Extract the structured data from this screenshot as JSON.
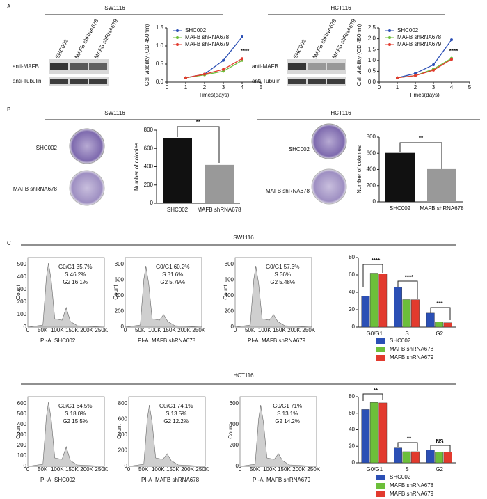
{
  "figure": {
    "panel_labels": [
      "A",
      "B",
      "C"
    ],
    "panel_a": [
      {
        "title": "SW1116",
        "lanes": [
          "SHC002",
          "MAFB shRNA678",
          "MAFB shRNA679"
        ],
        "rows": [
          "anti-MAFB",
          "anti-Tubulin"
        ]
      },
      {
        "title": "HCT116",
        "lanes": [
          "SHC002",
          "MAFB shRNA678",
          "MAFB shRNA679"
        ],
        "rows": [
          "anti-MAFB",
          "anti-Tubulin"
        ]
      }
    ],
    "panel_b": [
      {
        "title": "SW1116",
        "plates": [
          "SHC002",
          "MAFB shRNA678"
        ]
      },
      {
        "title": "HCT116",
        "plates": [
          "SHC002",
          "MAFB shRNA678"
        ]
      }
    ],
    "panel_c": {
      "ylabel": "Count",
      "xticks": [
        "0",
        "50K",
        "100K",
        "150K",
        "200K",
        "250K"
      ],
      "groups": [
        {
          "title": "SW1116",
          "histograms": [
            {
              "stats": [
                "G0/G1 35.7%",
                "S 46.2%",
                "G2 16.1%"
              ],
              "xlabel": "PI-A",
              "sample": "SHC002",
              "yticks": [
                "0",
                "100",
                "200",
                "300",
                "400",
                "500"
              ]
            },
            {
              "stats": [
                "G0/G1 60.2%",
                "S 31.6%",
                "G2 5.79%"
              ],
              "xlabel": "PI-A",
              "sample": "MAFB shRNA678",
              "yticks": [
                "0",
                "200",
                "400",
                "600",
                "800"
              ]
            },
            {
              "stats": [
                "G0/G1 57.3%",
                "S 36%",
                "G2 5.48%"
              ],
              "xlabel": "PI-A",
              "sample": "MAFB shRNA679",
              "yticks": [
                "0",
                "200",
                "400",
                "600",
                "800"
              ]
            }
          ]
        },
        {
          "title": "HCT116",
          "histograms": [
            {
              "stats": [
                "G0/G1 64.5%",
                "S 18.0%",
                "G2 15.5%"
              ],
              "xlabel": "PI-A",
              "sample": "SHC002",
              "yticks": [
                "0",
                "100",
                "200",
                "300",
                "400",
                "500",
                "600"
              ]
            },
            {
              "stats": [
                "G0/G1 74.1%",
                "S 13.5%",
                "G2 12.2%"
              ],
              "xlabel": "PI-A",
              "sample": "MAFB shRNA678",
              "yticks": [
                "0",
                "200",
                "400",
                "600",
                "800"
              ]
            },
            {
              "stats": [
                "G0/G1 71%",
                "S 13.1%",
                "G2 14.2%"
              ],
              "xlabel": "PI-A",
              "sample": "MAFB shRNA679",
              "yticks": [
                "0",
                "200",
                "400",
                "600"
              ]
            }
          ]
        }
      ]
    }
  },
  "chart_data": [
    {
      "type": "line",
      "x": [
        1,
        2,
        3,
        4
      ],
      "xlim": [
        0,
        5
      ],
      "xticks": [
        0,
        1,
        2,
        3,
        4,
        5
      ],
      "ylim": [
        0,
        1.5
      ],
      "yticks": [
        {
          "value": 0,
          "label": "0.0"
        },
        {
          "value": 0.5,
          "label": "0.5"
        },
        {
          "value": 1,
          "label": "1.0"
        },
        {
          "value": 1.5,
          "label": "1.5"
        }
      ],
      "xlabel": "Times(days)",
      "ylabel": "Cell viability (OD 450nm)",
      "legend": "upper left",
      "annotations": [
        "****"
      ],
      "series": [
        {
          "name": "SHC002",
          "color": "#2b4fb5",
          "values": [
            0.12,
            0.22,
            0.6,
            1.25
          ]
        },
        {
          "name": "MAFB shRNA678",
          "color": "#6cbf3a",
          "values": [
            0.12,
            0.2,
            0.3,
            0.6
          ]
        },
        {
          "name": "MAFB shRNA679",
          "color": "#e23a2e",
          "values": [
            0.12,
            0.22,
            0.35,
            0.65
          ]
        }
      ]
    },
    {
      "type": "line",
      "x": [
        1,
        2,
        3,
        4
      ],
      "xlim": [
        0,
        5
      ],
      "xticks": [
        0,
        1,
        2,
        3,
        4,
        5
      ],
      "ylim": [
        0,
        2.5
      ],
      "yticks": [
        {
          "value": 0,
          "label": "0.0"
        },
        {
          "value": 0.5,
          "label": "0.5"
        },
        {
          "value": 1,
          "label": "1.0"
        },
        {
          "value": 1.5,
          "label": "1.5"
        },
        {
          "value": 2,
          "label": "2.0"
        },
        {
          "value": 2.5,
          "label": "2.5"
        }
      ],
      "xlabel": "Times(days)",
      "ylabel": "Cell viability (OD 450nm)",
      "legend": "upper left",
      "annotations": [
        "****"
      ],
      "series": [
        {
          "name": "SHC002",
          "color": "#2b4fb5",
          "values": [
            0.2,
            0.4,
            0.8,
            1.95
          ]
        },
        {
          "name": "MAFB shRNA678",
          "color": "#6cbf3a",
          "values": [
            0.2,
            0.3,
            0.6,
            1.1
          ]
        },
        {
          "name": "MAFB shRNA679",
          "color": "#e23a2e",
          "values": [
            0.2,
            0.3,
            0.55,
            1.05
          ]
        }
      ]
    },
    {
      "type": "bar",
      "categories": [
        "SHC002",
        "MAFB shRNA678"
      ],
      "values": [
        710,
        420
      ],
      "colors": [
        "#111111",
        "#999999"
      ],
      "ylim": [
        0,
        800
      ],
      "yticks": [
        0,
        200,
        400,
        600,
        800
      ],
      "ylabel": "Number of colonies",
      "annotations": [
        "**"
      ]
    },
    {
      "type": "bar",
      "categories": [
        "SHC002",
        "MAFB shRNA678"
      ],
      "values": [
        605,
        405
      ],
      "colors": [
        "#111111",
        "#999999"
      ],
      "ylim": [
        0,
        800
      ],
      "yticks": [
        0,
        200,
        400,
        600,
        800
      ],
      "ylabel": "Number of colonies",
      "annotations": [
        "**"
      ]
    },
    {
      "type": "grouped-bar",
      "categories": [
        "G0/G1",
        "S",
        "G2"
      ],
      "ylim": [
        0,
        80
      ],
      "yticks": [
        0,
        20,
        40,
        60,
        80
      ],
      "legend": "below",
      "annotations": [
        "****",
        "****",
        "***"
      ],
      "series": [
        {
          "name": "SHC002",
          "color": "#2b4fb5",
          "values": [
            35.7,
            46.2,
            16.1
          ]
        },
        {
          "name": "MAFB shRNA678",
          "color": "#6cbf3a",
          "values": [
            62,
            31.6,
            5.8
          ]
        },
        {
          "name": "MAFB shRNA679",
          "color": "#e23a2e",
          "values": [
            61,
            31.5,
            5
          ]
        }
      ]
    },
    {
      "type": "grouped-bar",
      "categories": [
        "G0/G1",
        "S",
        "G2"
      ],
      "ylim": [
        0,
        80
      ],
      "yticks": [
        0,
        20,
        40,
        60,
        80
      ],
      "legend": "below",
      "annotations": [
        "**",
        "**",
        "NS"
      ],
      "series": [
        {
          "name": "SHC002",
          "color": "#2b4fb5",
          "values": [
            64.5,
            18,
            15.5
          ]
        },
        {
          "name": "MAFB shRNA678",
          "color": "#6cbf3a",
          "values": [
            73,
            13.5,
            13
          ]
        },
        {
          "name": "MAFB shRNA679",
          "color": "#e23a2e",
          "values": [
            72.5,
            13.5,
            13
          ]
        }
      ]
    }
  ]
}
